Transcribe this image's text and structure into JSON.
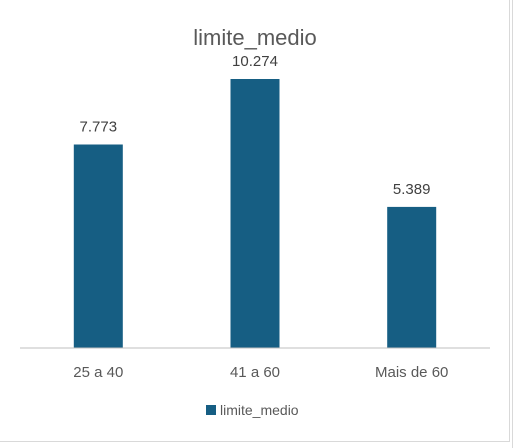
{
  "chart_data": {
    "type": "bar",
    "title": "limite_medio",
    "categories": [
      "25 a 40",
      "41 a 60",
      "Mais de 60"
    ],
    "series": [
      {
        "name": "limite_medio",
        "values": [
          7773,
          10274,
          5389
        ],
        "labels": [
          "7.773",
          "10.274",
          "5.389"
        ]
      }
    ],
    "ylim": [
      0,
      12000
    ],
    "grid": false,
    "legend": "bottom",
    "colors": {
      "bar": "#165e83",
      "axis": "#bfbfbf"
    }
  }
}
